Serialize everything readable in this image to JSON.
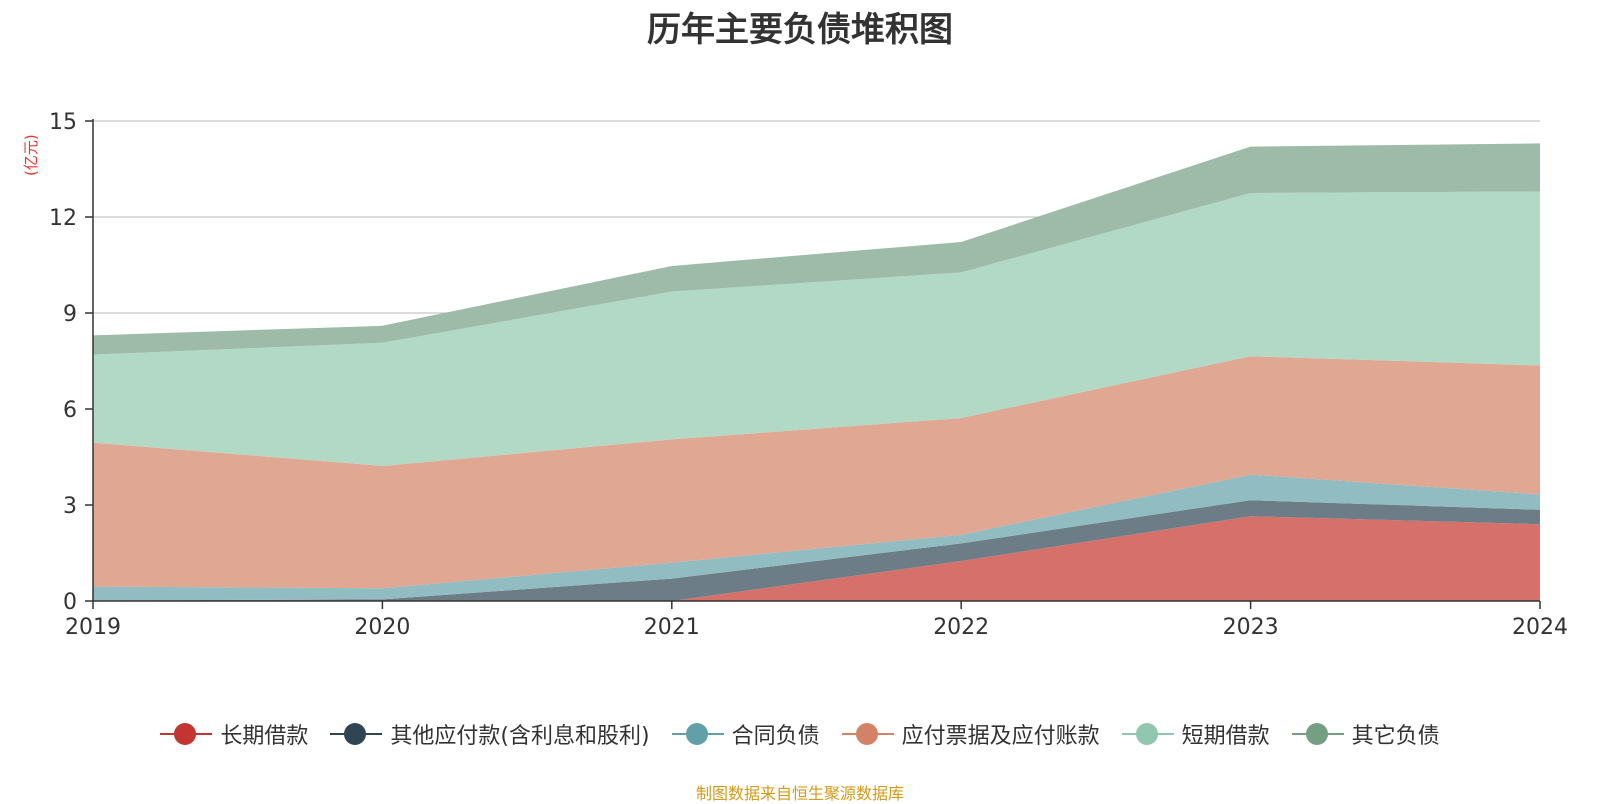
{
  "title": "历年主要负债堆积图",
  "unit_label": "(亿元)",
  "source_note": "制图数据来自恒生聚源数据库",
  "chart_data": {
    "type": "area",
    "stacked": true,
    "title": "历年主要负债堆积图",
    "ylabel": "(亿元)",
    "ylim": [
      0,
      15
    ],
    "yticks": [
      "0",
      "3",
      "6",
      "9",
      "12",
      "15"
    ],
    "x": [
      "2019",
      "2020",
      "2021",
      "2022",
      "2023",
      "2024"
    ],
    "grid": true,
    "legend_position": "bottom",
    "series": [
      {
        "name": "长期借款",
        "color": "#c23531",
        "area_color": "#d5706b",
        "values": [
          0.0,
          0.0,
          0.0,
          1.25,
          2.65,
          2.4
        ]
      },
      {
        "name": "其他应付款(含利息和股利)",
        "color": "#2f4554",
        "area_color": "#6d7d87",
        "values": [
          0.02,
          0.05,
          0.7,
          0.55,
          0.5,
          0.45
        ]
      },
      {
        "name": "合同负债",
        "color": "#61a0a8",
        "area_color": "#90bcc2",
        "values": [
          0.43,
          0.35,
          0.5,
          0.27,
          0.8,
          0.48
        ]
      },
      {
        "name": "应付票据及应付账款",
        "color": "#d48265",
        "area_color": "#e0a792",
        "values": [
          4.5,
          3.82,
          3.85,
          3.65,
          3.7,
          4.03
        ]
      },
      {
        "name": "短期借款",
        "color": "#91c7ae",
        "area_color": "#b1d9c6",
        "values": [
          2.75,
          3.85,
          4.62,
          4.55,
          5.1,
          5.44
        ]
      },
      {
        "name": "其它负债",
        "color": "#749f83",
        "area_color": "#9dbba8",
        "values": [
          0.6,
          0.53,
          0.8,
          0.95,
          1.45,
          1.5
        ]
      }
    ]
  }
}
